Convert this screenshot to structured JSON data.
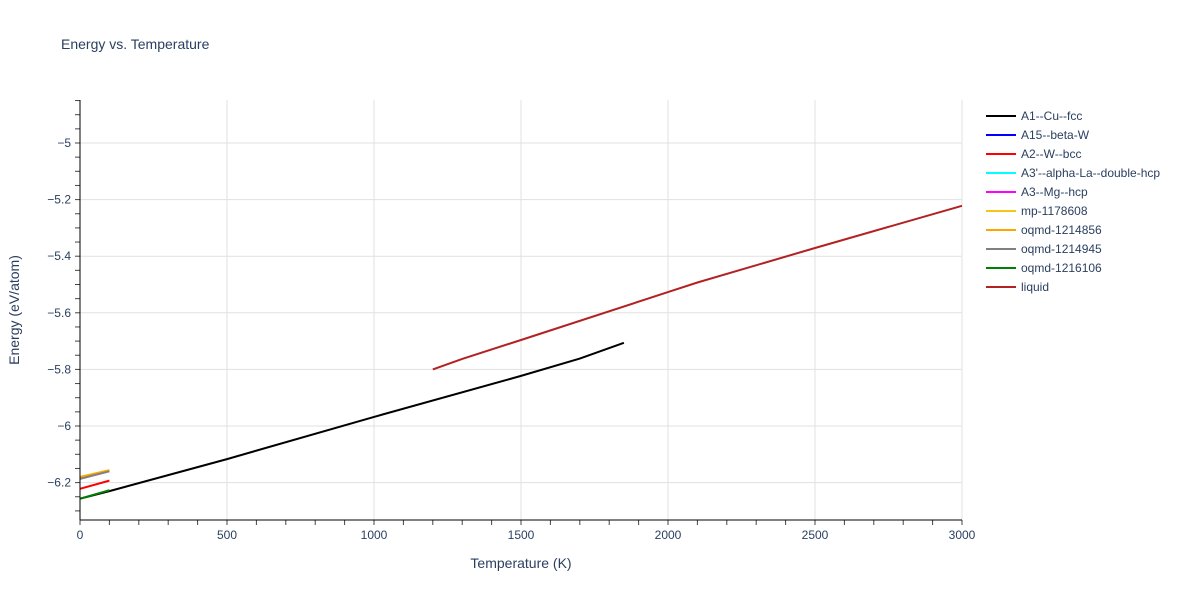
{
  "chart_data": {
    "type": "line",
    "title": "Energy vs. Temperature",
    "xlabel": "Temperature (K)",
    "ylabel": "Energy (eV/atom)",
    "xlim": [
      0,
      3000
    ],
    "ylim": [
      -6.33,
      -4.85
    ],
    "x_ticks": [
      0,
      500,
      1000,
      1500,
      2000,
      2500,
      3000
    ],
    "x_tick_labels": [
      "0",
      "500",
      "1000",
      "1500",
      "2000",
      "2500",
      "3000"
    ],
    "y_ticks": [
      -5,
      -5.2,
      -5.4,
      -5.6,
      -5.8,
      -6,
      -6.2
    ],
    "y_tick_labels": [
      "−5",
      "−5.2",
      "−5.4",
      "−5.6",
      "−5.8",
      "−6",
      "−6.2"
    ],
    "grid": true,
    "legend_position": "right",
    "series": [
      {
        "name": "A1--Cu--fcc",
        "color": "#000000",
        "x": [
          0,
          100,
          500,
          1000,
          1500,
          1700,
          1850
        ],
        "y": [
          -6.257,
          -6.23,
          -6.117,
          -5.968,
          -5.823,
          -5.762,
          -5.706
        ]
      },
      {
        "name": "A15--beta-W",
        "color": "#0000ff",
        "x": [],
        "y": []
      },
      {
        "name": "A2--W--bcc",
        "color": "#ff0000",
        "x": [
          0,
          100
        ],
        "y": [
          -6.222,
          -6.193
        ]
      },
      {
        "name": "A3'--alpha-La--double-hcp",
        "color": "#00ffff",
        "x": [],
        "y": []
      },
      {
        "name": "A3--Mg--hcp",
        "color": "#ff00ff",
        "x": [],
        "y": []
      },
      {
        "name": "mp-1178608",
        "color": "#f5c518",
        "x": [
          0,
          100
        ],
        "y": [
          -6.18,
          -6.156
        ]
      },
      {
        "name": "oqmd-1214856",
        "color": "#ffa500",
        "x": [
          0,
          100
        ],
        "y": [
          -6.181,
          -6.157
        ]
      },
      {
        "name": "oqmd-1214945",
        "color": "#808080",
        "x": [
          0,
          100
        ],
        "y": [
          -6.187,
          -6.16
        ]
      },
      {
        "name": "oqmd-1216106",
        "color": "#008000",
        "x": [
          0,
          100
        ],
        "y": [
          -6.257,
          -6.227
        ]
      },
      {
        "name": "liquid",
        "color": "#b22222",
        "x": [
          1200,
          1300,
          1500,
          2000,
          2100,
          2500,
          3000
        ],
        "y": [
          -5.8,
          -5.763,
          -5.696,
          -5.527,
          -5.493,
          -5.371,
          -5.222
        ]
      }
    ]
  }
}
